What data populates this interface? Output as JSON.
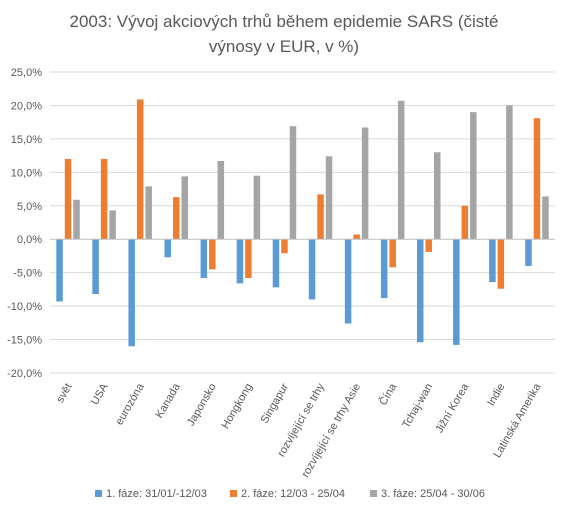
{
  "chart_data": {
    "type": "bar",
    "title_lines": [
      "2003: Vývoj akciových trhů během epidemie SARS (čisté",
      "výnosy v EUR, v %)"
    ],
    "xlabel": "",
    "ylabel": "",
    "ylim": [
      -20,
      25
    ],
    "y_ticks": [
      25,
      20,
      15,
      10,
      5,
      0,
      -5,
      -10,
      -15,
      -20
    ],
    "y_tick_labels": [
      "25,0%",
      "20,0%",
      "15,0%",
      "10,0%",
      "5,0%",
      "0,0%",
      "-5,0%",
      "-10,0%",
      "-15,0%",
      "-20,0%"
    ],
    "grid": true,
    "legend_position": "bottom",
    "categories": [
      "svět",
      "USA",
      "eurozóna",
      "Kanada",
      "Japonsko",
      "Hongkong",
      "Singapur",
      "rozvíjející se trhy",
      "rozvíjející se trhy Asie",
      "Čína",
      "Tchaj-wan",
      "Jižní Korea",
      "Indie",
      "Latinská Amerika"
    ],
    "series": [
      {
        "name": "1. fáze: 31/01/-12/03",
        "color": "#5b9bd5",
        "values": [
          -9.3,
          -8.2,
          -16.0,
          -2.7,
          -5.8,
          -6.6,
          -7.2,
          -9.0,
          -12.6,
          -8.8,
          -15.4,
          -15.8,
          -6.4,
          -4.0
        ]
      },
      {
        "name": "2. fáze: 12/03 - 25/04",
        "color": "#ed7d31",
        "values": [
          12.0,
          12.0,
          20.9,
          6.3,
          -4.5,
          -5.8,
          -2.1,
          6.7,
          0.7,
          -4.2,
          -1.9,
          5.0,
          -7.4,
          18.1
        ]
      },
      {
        "name": "3. fáze: 25/04 - 30/06",
        "color": "#a5a5a5",
        "values": [
          5.9,
          4.3,
          7.9,
          9.4,
          11.7,
          9.5,
          16.9,
          12.4,
          16.7,
          20.7,
          13.0,
          19.0,
          20.0,
          6.4
        ]
      }
    ]
  }
}
